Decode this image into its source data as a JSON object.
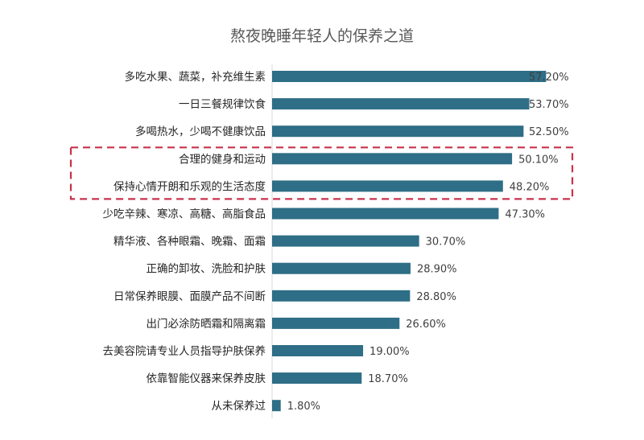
{
  "chart_data": {
    "type": "bar",
    "orientation": "horizontal",
    "title": "熬夜晚睡年轻人的保养之道",
    "xlabel": "",
    "ylabel": "",
    "categories": [
      "多吃水果、蔬菜，补充维生素",
      "一日三餐规律饮食",
      "多喝热水，少喝不健康饮品",
      "合理的健身和运动",
      "保持心情开朗和乐观的生活态度",
      "少吃辛辣、寒凉、高糖、高脂食品",
      "精华液、各种眼霜、晚霜、面霜",
      "正确的卸妆、洗脸和护肤",
      "日常保养眼膜、面膜产品不间断",
      "出门必涂防晒霜和隔离霜",
      "去美容院请专业人员指导护肤保养",
      "依靠智能仪器来保养皮肤",
      "从未保养过"
    ],
    "values": [
      57.2,
      53.7,
      52.5,
      50.1,
      48.2,
      47.3,
      30.7,
      28.9,
      28.8,
      26.6,
      19.0,
      18.7,
      1.8
    ],
    "value_labels": [
      "57.20%",
      "53.70%",
      "52.50%",
      "50.10%",
      "48.20%",
      "47.30%",
      "30.70%",
      "28.90%",
      "28.80%",
      "26.60%",
      "19.00%",
      "18.70%",
      "1.80%"
    ],
    "highlighted_categories": [
      3,
      4
    ],
    "grid": false,
    "legend": "none",
    "bar_color": "#2e6e86",
    "highlight_color": "#c8324b"
  }
}
